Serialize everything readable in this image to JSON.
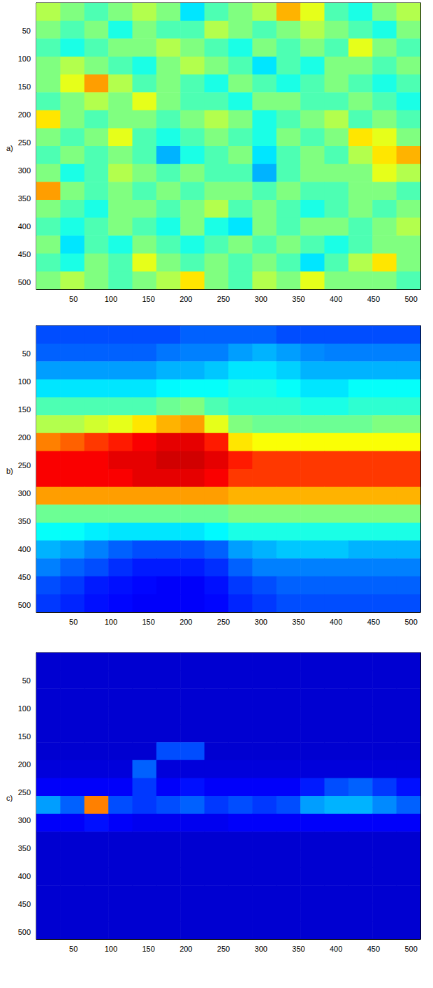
{
  "chart_data": [
    {
      "type": "heatmap",
      "title": "a)",
      "xlim": [
        0.5,
        512.5
      ],
      "ylim": [
        0.5,
        512.5
      ],
      "xticks": [
        50,
        100,
        150,
        200,
        250,
        300,
        350,
        400,
        450,
        500
      ],
      "yticks": [
        50,
        100,
        150,
        200,
        250,
        300,
        350,
        400,
        450,
        500
      ],
      "x_edges": [
        0.5,
        32.5,
        64.5,
        96.5,
        128.5,
        160.5,
        192.5,
        224.5,
        256.5,
        288.5,
        320.5,
        352.5,
        384.5,
        416.5,
        448.5,
        480.5,
        512.5
      ],
      "y_edges": [
        0.5,
        32.5,
        64.5,
        96.5,
        128.5,
        160.5,
        192.5,
        224.5,
        256.5,
        288.5,
        320.5,
        352.5,
        384.5,
        416.5,
        448.5,
        480.5,
        512.5
      ],
      "clim": [
        0,
        1
      ],
      "cells": [
        [
          0.55,
          0.5,
          0.45,
          0.5,
          0.55,
          0.5,
          0.35,
          0.45,
          0.5,
          0.55,
          0.7,
          0.6,
          0.45,
          0.4,
          0.5,
          0.55
        ],
        [
          0.5,
          0.45,
          0.5,
          0.4,
          0.5,
          0.45,
          0.45,
          0.55,
          0.5,
          0.45,
          0.5,
          0.55,
          0.5,
          0.45,
          0.4,
          0.5
        ],
        [
          0.45,
          0.4,
          0.45,
          0.5,
          0.5,
          0.55,
          0.5,
          0.45,
          0.4,
          0.5,
          0.45,
          0.5,
          0.45,
          0.6,
          0.5,
          0.45
        ],
        [
          0.5,
          0.55,
          0.5,
          0.45,
          0.4,
          0.5,
          0.55,
          0.5,
          0.45,
          0.35,
          0.45,
          0.4,
          0.5,
          0.5,
          0.45,
          0.5
        ],
        [
          0.5,
          0.6,
          0.72,
          0.55,
          0.45,
          0.5,
          0.45,
          0.4,
          0.5,
          0.45,
          0.4,
          0.45,
          0.5,
          0.45,
          0.4,
          0.45
        ],
        [
          0.45,
          0.5,
          0.55,
          0.5,
          0.6,
          0.5,
          0.45,
          0.45,
          0.4,
          0.5,
          0.5,
          0.45,
          0.45,
          0.5,
          0.45,
          0.4
        ],
        [
          0.65,
          0.5,
          0.45,
          0.5,
          0.5,
          0.45,
          0.5,
          0.55,
          0.5,
          0.4,
          0.45,
          0.5,
          0.55,
          0.45,
          0.5,
          0.45
        ],
        [
          0.5,
          0.45,
          0.5,
          0.6,
          0.45,
          0.4,
          0.45,
          0.5,
          0.45,
          0.4,
          0.5,
          0.45,
          0.5,
          0.65,
          0.6,
          0.5
        ],
        [
          0.45,
          0.5,
          0.45,
          0.5,
          0.45,
          0.3,
          0.4,
          0.45,
          0.5,
          0.35,
          0.45,
          0.5,
          0.45,
          0.55,
          0.65,
          0.7
        ],
        [
          0.5,
          0.4,
          0.45,
          0.55,
          0.5,
          0.45,
          0.5,
          0.45,
          0.45,
          0.3,
          0.45,
          0.5,
          0.5,
          0.5,
          0.6,
          0.55
        ],
        [
          0.72,
          0.5,
          0.45,
          0.5,
          0.45,
          0.5,
          0.45,
          0.5,
          0.5,
          0.45,
          0.5,
          0.45,
          0.45,
          0.5,
          0.5,
          0.45
        ],
        [
          0.5,
          0.45,
          0.4,
          0.5,
          0.5,
          0.45,
          0.5,
          0.55,
          0.45,
          0.5,
          0.45,
          0.4,
          0.45,
          0.5,
          0.45,
          0.5
        ],
        [
          0.45,
          0.4,
          0.45,
          0.5,
          0.45,
          0.4,
          0.5,
          0.4,
          0.35,
          0.5,
          0.45,
          0.5,
          0.5,
          0.45,
          0.5,
          0.55
        ],
        [
          0.5,
          0.35,
          0.45,
          0.4,
          0.5,
          0.45,
          0.4,
          0.45,
          0.5,
          0.45,
          0.5,
          0.45,
          0.4,
          0.45,
          0.5,
          0.5
        ],
        [
          0.45,
          0.4,
          0.5,
          0.45,
          0.6,
          0.5,
          0.45,
          0.5,
          0.45,
          0.5,
          0.45,
          0.35,
          0.45,
          0.55,
          0.65,
          0.5
        ],
        [
          0.5,
          0.55,
          0.5,
          0.45,
          0.5,
          0.55,
          0.65,
          0.5,
          0.45,
          0.55,
          0.5,
          0.6,
          0.5,
          0.5,
          0.5,
          0.45
        ]
      ]
    },
    {
      "type": "heatmap",
      "title": "b)",
      "xlim": [
        0.5,
        512.5
      ],
      "ylim": [
        0.5,
        512.5
      ],
      "xticks": [
        50,
        100,
        150,
        200,
        250,
        300,
        350,
        400,
        450,
        500
      ],
      "yticks": [
        50,
        100,
        150,
        200,
        250,
        300,
        350,
        400,
        450,
        500
      ],
      "x_edges": [
        0.5,
        32.5,
        64.5,
        96.5,
        128.5,
        160.5,
        192.5,
        224.5,
        256.5,
        288.5,
        320.5,
        352.5,
        384.5,
        416.5,
        448.5,
        480.5,
        512.5
      ],
      "y_edges": [
        0.5,
        32.5,
        64.5,
        96.5,
        128.5,
        160.5,
        192.5,
        224.5,
        256.5,
        288.5,
        320.5,
        352.5,
        384.5,
        416.5,
        448.5,
        480.5,
        512.5
      ],
      "clim": [
        0,
        1
      ],
      "cells": [
        [
          0.2,
          0.2,
          0.2,
          0.2,
          0.2,
          0.2,
          0.22,
          0.22,
          0.22,
          0.22,
          0.2,
          0.2,
          0.2,
          0.2,
          0.2,
          0.2
        ],
        [
          0.22,
          0.22,
          0.22,
          0.22,
          0.22,
          0.24,
          0.25,
          0.25,
          0.28,
          0.3,
          0.28,
          0.26,
          0.25,
          0.25,
          0.25,
          0.25
        ],
        [
          0.28,
          0.28,
          0.28,
          0.28,
          0.28,
          0.3,
          0.3,
          0.32,
          0.35,
          0.35,
          0.33,
          0.3,
          0.3,
          0.3,
          0.3,
          0.3
        ],
        [
          0.35,
          0.35,
          0.35,
          0.35,
          0.35,
          0.37,
          0.38,
          0.38,
          0.4,
          0.4,
          0.38,
          0.35,
          0.35,
          0.38,
          0.38,
          0.38
        ],
        [
          0.45,
          0.45,
          0.45,
          0.45,
          0.45,
          0.48,
          0.5,
          0.45,
          0.42,
          0.42,
          0.42,
          0.4,
          0.4,
          0.42,
          0.42,
          0.42
        ],
        [
          0.55,
          0.55,
          0.58,
          0.6,
          0.65,
          0.7,
          0.72,
          0.6,
          0.5,
          0.48,
          0.48,
          0.48,
          0.48,
          0.48,
          0.5,
          0.5
        ],
        [
          0.75,
          0.78,
          0.82,
          0.85,
          0.88,
          0.9,
          0.9,
          0.85,
          0.65,
          0.62,
          0.62,
          0.62,
          0.62,
          0.62,
          0.62,
          0.62
        ],
        [
          0.88,
          0.88,
          0.88,
          0.9,
          0.9,
          0.92,
          0.92,
          0.9,
          0.85,
          0.82,
          0.82,
          0.82,
          0.82,
          0.82,
          0.82,
          0.82
        ],
        [
          0.88,
          0.88,
          0.88,
          0.88,
          0.9,
          0.9,
          0.9,
          0.88,
          0.82,
          0.82,
          0.82,
          0.82,
          0.82,
          0.82,
          0.82,
          0.82
        ],
        [
          0.72,
          0.72,
          0.72,
          0.72,
          0.72,
          0.72,
          0.72,
          0.72,
          0.7,
          0.7,
          0.7,
          0.7,
          0.7,
          0.7,
          0.7,
          0.7
        ],
        [
          0.48,
          0.48,
          0.48,
          0.48,
          0.48,
          0.48,
          0.48,
          0.48,
          0.5,
          0.5,
          0.5,
          0.5,
          0.5,
          0.5,
          0.5,
          0.5
        ],
        [
          0.38,
          0.38,
          0.36,
          0.35,
          0.35,
          0.35,
          0.35,
          0.37,
          0.4,
          0.4,
          0.4,
          0.4,
          0.4,
          0.4,
          0.4,
          0.4
        ],
        [
          0.3,
          0.28,
          0.25,
          0.22,
          0.2,
          0.2,
          0.2,
          0.22,
          0.28,
          0.3,
          0.32,
          0.32,
          0.32,
          0.3,
          0.3,
          0.3
        ],
        [
          0.25,
          0.22,
          0.2,
          0.17,
          0.15,
          0.15,
          0.15,
          0.17,
          0.22,
          0.25,
          0.25,
          0.25,
          0.25,
          0.25,
          0.25,
          0.25
        ],
        [
          0.2,
          0.18,
          0.15,
          0.14,
          0.13,
          0.12,
          0.12,
          0.14,
          0.18,
          0.2,
          0.22,
          0.22,
          0.22,
          0.22,
          0.22,
          0.22
        ],
        [
          0.18,
          0.16,
          0.14,
          0.13,
          0.12,
          0.12,
          0.12,
          0.13,
          0.16,
          0.18,
          0.2,
          0.2,
          0.2,
          0.2,
          0.2,
          0.2
        ]
      ]
    },
    {
      "type": "heatmap",
      "title": "c)",
      "xlim": [
        0.5,
        512.5
      ],
      "ylim": [
        0.5,
        512.5
      ],
      "xticks": [
        50,
        100,
        150,
        200,
        250,
        300,
        350,
        400,
        450,
        500
      ],
      "yticks": [
        50,
        100,
        150,
        200,
        250,
        300,
        350,
        400,
        450,
        500
      ],
      "x_edges": [
        0.5,
        32.5,
        64.5,
        96.5,
        128.5,
        160.5,
        192.5,
        224.5,
        256.5,
        288.5,
        320.5,
        352.5,
        384.5,
        416.5,
        448.5,
        480.5,
        512.5
      ],
      "y_edges": [
        0.5,
        32.5,
        64.5,
        96.5,
        128.5,
        160.5,
        192.5,
        224.5,
        256.5,
        288.5,
        320.5,
        352.5,
        384.5,
        416.5,
        448.5,
        480.5,
        512.5
      ],
      "clim": [
        0,
        1
      ],
      "cells": [
        [
          0.08,
          0.08,
          0.08,
          0.08,
          0.08,
          0.08,
          0.08,
          0.08,
          0.08,
          0.08,
          0.08,
          0.08,
          0.08,
          0.08,
          0.08,
          0.08
        ],
        [
          0.08,
          0.08,
          0.08,
          0.08,
          0.08,
          0.08,
          0.08,
          0.08,
          0.08,
          0.08,
          0.08,
          0.08,
          0.08,
          0.08,
          0.08,
          0.08
        ],
        [
          0.08,
          0.08,
          0.08,
          0.08,
          0.08,
          0.08,
          0.08,
          0.08,
          0.08,
          0.08,
          0.08,
          0.08,
          0.08,
          0.08,
          0.08,
          0.08
        ],
        [
          0.08,
          0.08,
          0.08,
          0.08,
          0.08,
          0.08,
          0.08,
          0.08,
          0.08,
          0.08,
          0.08,
          0.08,
          0.08,
          0.08,
          0.08,
          0.08
        ],
        [
          0.08,
          0.08,
          0.08,
          0.08,
          0.08,
          0.08,
          0.08,
          0.08,
          0.08,
          0.08,
          0.08,
          0.08,
          0.08,
          0.08,
          0.08,
          0.08
        ],
        [
          0.08,
          0.08,
          0.08,
          0.08,
          0.08,
          0.2,
          0.2,
          0.08,
          0.08,
          0.08,
          0.08,
          0.08,
          0.08,
          0.08,
          0.08,
          0.08
        ],
        [
          0.09,
          0.09,
          0.09,
          0.09,
          0.22,
          0.09,
          0.09,
          0.09,
          0.09,
          0.09,
          0.09,
          0.09,
          0.09,
          0.09,
          0.09,
          0.09
        ],
        [
          0.12,
          0.12,
          0.12,
          0.12,
          0.18,
          0.12,
          0.14,
          0.12,
          0.12,
          0.12,
          0.12,
          0.15,
          0.2,
          0.22,
          0.18,
          0.14
        ],
        [
          0.28,
          0.22,
          0.75,
          0.2,
          0.18,
          0.2,
          0.22,
          0.18,
          0.2,
          0.18,
          0.2,
          0.28,
          0.3,
          0.3,
          0.26,
          0.22
        ],
        [
          0.12,
          0.12,
          0.14,
          0.12,
          0.11,
          0.11,
          0.11,
          0.11,
          0.12,
          0.12,
          0.12,
          0.12,
          0.12,
          0.12,
          0.12,
          0.12
        ],
        [
          0.08,
          0.08,
          0.08,
          0.08,
          0.08,
          0.08,
          0.08,
          0.08,
          0.08,
          0.08,
          0.08,
          0.08,
          0.08,
          0.08,
          0.08,
          0.08
        ],
        [
          0.08,
          0.08,
          0.08,
          0.08,
          0.08,
          0.08,
          0.08,
          0.08,
          0.08,
          0.08,
          0.08,
          0.08,
          0.08,
          0.08,
          0.08,
          0.08
        ],
        [
          0.08,
          0.08,
          0.08,
          0.08,
          0.08,
          0.08,
          0.08,
          0.08,
          0.08,
          0.08,
          0.08,
          0.08,
          0.08,
          0.08,
          0.08,
          0.08
        ],
        [
          0.08,
          0.08,
          0.08,
          0.08,
          0.08,
          0.08,
          0.08,
          0.08,
          0.08,
          0.08,
          0.08,
          0.08,
          0.08,
          0.08,
          0.08,
          0.08
        ],
        [
          0.08,
          0.08,
          0.08,
          0.08,
          0.08,
          0.08,
          0.08,
          0.08,
          0.08,
          0.08,
          0.08,
          0.08,
          0.08,
          0.08,
          0.08,
          0.08
        ],
        [
          0.08,
          0.08,
          0.08,
          0.08,
          0.08,
          0.08,
          0.08,
          0.08,
          0.08,
          0.08,
          0.08,
          0.08,
          0.08,
          0.08,
          0.08,
          0.08
        ]
      ]
    }
  ]
}
